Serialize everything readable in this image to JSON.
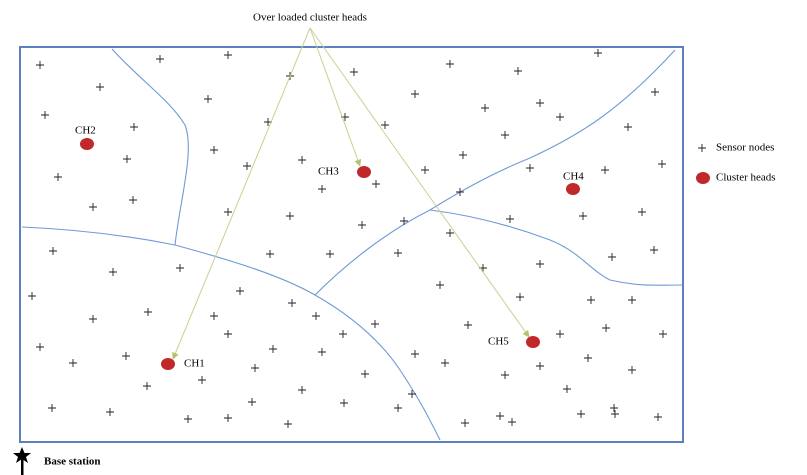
{
  "title": "Over loaded cluster heads",
  "cluster_heads": [
    {
      "label": "CH1"
    },
    {
      "label": "CH2"
    },
    {
      "label": "CH3"
    },
    {
      "label": "CH4"
    },
    {
      "label": "CH5"
    }
  ],
  "legend": {
    "sensor_nodes": "Sensor nodes",
    "cluster_heads": "Cluster heads"
  },
  "base_station": "Base station"
}
